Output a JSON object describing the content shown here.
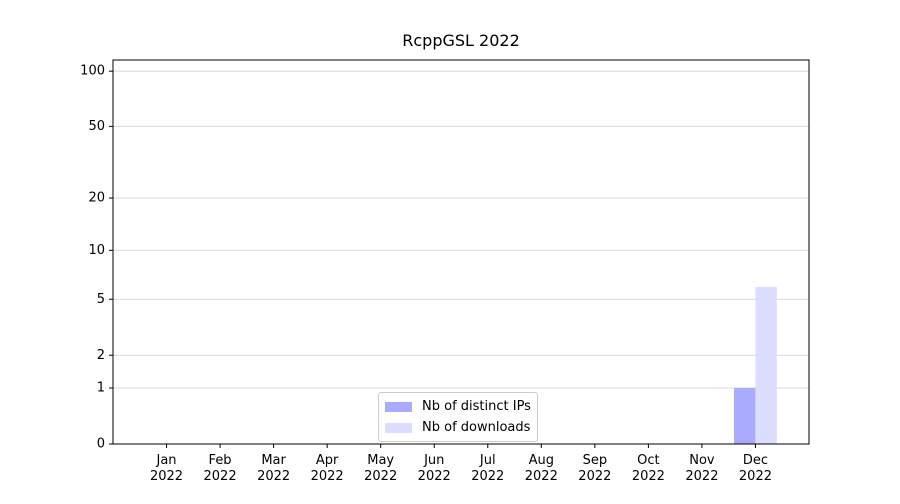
{
  "chart_data": {
    "type": "bar",
    "title": "RcppGSL 2022",
    "categories": [
      "Jan\n2022",
      "Feb\n2022",
      "Mar\n2022",
      "Apr\n2022",
      "May\n2022",
      "Jun\n2022",
      "Jul\n2022",
      "Aug\n2022",
      "Sep\n2022",
      "Oct\n2022",
      "Nov\n2022",
      "Dec\n2022"
    ],
    "series": [
      {
        "name": "Nb of distinct IPs",
        "color": "#aaaaff",
        "values": [
          0,
          0,
          0,
          0,
          0,
          0,
          0,
          0,
          0,
          0,
          0,
          1
        ]
      },
      {
        "name": "Nb of downloads",
        "color": "#ddddff",
        "values": [
          0,
          0,
          0,
          0,
          0,
          0,
          0,
          0,
          0,
          0,
          0,
          6
        ]
      }
    ],
    "yscale": "symlog",
    "ylim": [
      0,
      115
    ],
    "yticks": [
      0,
      1,
      2,
      5,
      10,
      20,
      50,
      100
    ],
    "grid": true,
    "legend": "lower center"
  }
}
